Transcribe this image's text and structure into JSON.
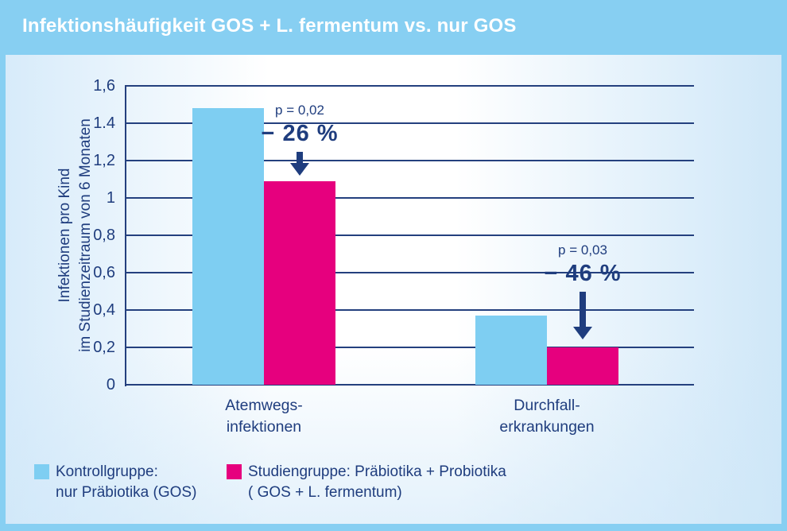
{
  "title": "Infektionshäufigkeit GOS + L. fermentum vs. nur GOS",
  "colors": {
    "frame_blue": "#87cff2",
    "navy": "#1f3d7e",
    "control_blue": "#7ecef2",
    "study_pink": "#e6007e"
  },
  "chart_data": {
    "type": "bar",
    "title": "Infektionshäufigkeit GOS + L. fermentum vs. nur GOS",
    "categories": [
      [
        "Atemwegs-",
        "infektionen"
      ],
      [
        "Durchfall-",
        "erkrankungen"
      ]
    ],
    "series": [
      {
        "name": "Kontrollgruppe: nur Präbiotika (GOS)",
        "color": "#7ecef2",
        "values": [
          1.48,
          0.37
        ]
      },
      {
        "name": "Studiengruppe: Präbiotika + Probiotika (GOS + L. fermentum)",
        "color": "#e6007e",
        "values": [
          1.09,
          0.2
        ]
      }
    ],
    "annotations": [
      {
        "p_label": "p = 0,02",
        "delta_label": "− 26 %"
      },
      {
        "p_label": "p = 0,03",
        "delta_label": "− 46 %"
      }
    ],
    "ylabel_lines": [
      "Infektionen pro Kind",
      "im Studienzeitraum von 6 Monaten"
    ],
    "ytick_labels": [
      "1,6",
      "1.4",
      "1,2",
      "1",
      "0,8",
      "0,6",
      "0,4",
      "0,2",
      "0"
    ],
    "ylim": [
      0,
      1.6
    ],
    "grid": true,
    "legend_position": "bottom"
  },
  "legend": {
    "items": [
      {
        "label_line1": "Kontrollgruppe:",
        "label_line2": "nur Präbiotika (GOS)",
        "color": "#7ecef2"
      },
      {
        "label_line1": "Studiengruppe: Präbiotika + Probiotika",
        "label_line2": "( GOS + L. fermentum)",
        "color": "#e6007e"
      }
    ]
  }
}
